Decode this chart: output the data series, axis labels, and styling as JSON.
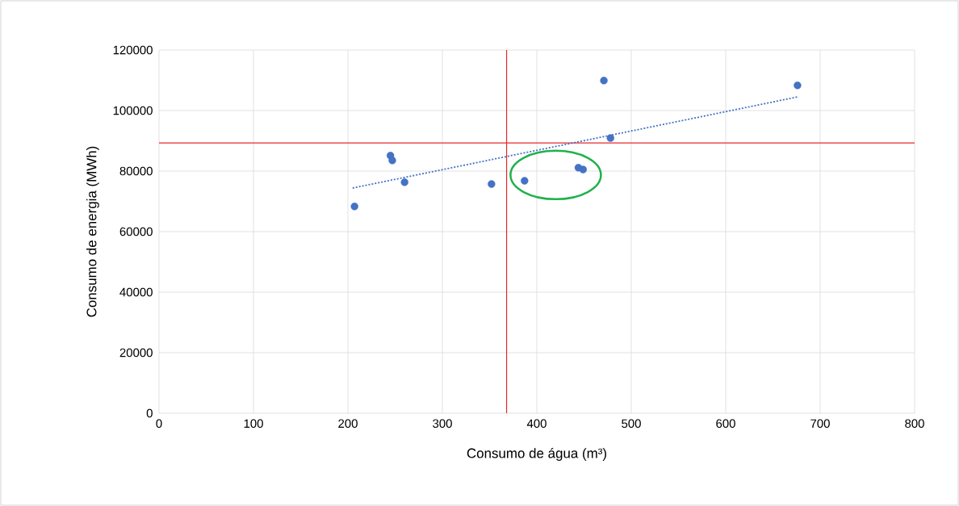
{
  "chart_data": {
    "type": "scatter",
    "xlabel": "Consumo de água (m³)",
    "ylabel": "Consumo de energia  (MWh)",
    "series": [
      {
        "color": "#4472c4",
        "marker": "circle",
        "x": [
          207,
          245,
          247,
          260,
          352,
          387,
          444,
          449,
          471,
          478,
          676
        ],
        "values": [
          68300,
          85100,
          83500,
          76300,
          75700,
          76800,
          81100,
          80500,
          109900,
          90900,
          108300
        ]
      },
      {
        "type": "line",
        "color": "#4472c4",
        "line_style": "dotted",
        "marker": "none",
        "x": [
          205,
          676
        ],
        "values": [
          74400,
          104500
        ]
      }
    ],
    "xlim": [
      0,
      800
    ],
    "xticks": [
      0,
      100,
      200,
      300,
      400,
      500,
      600,
      700,
      800
    ],
    "ylim": [
      0,
      120000
    ],
    "yticks": [
      0,
      20000,
      40000,
      60000,
      80000,
      100000,
      120000
    ],
    "grid": true,
    "ref_lines": [
      {
        "axis": "x",
        "value": 368,
        "color": "#e8282b"
      },
      {
        "axis": "y",
        "value": 89300,
        "color": "#e8282b"
      }
    ]
  }
}
